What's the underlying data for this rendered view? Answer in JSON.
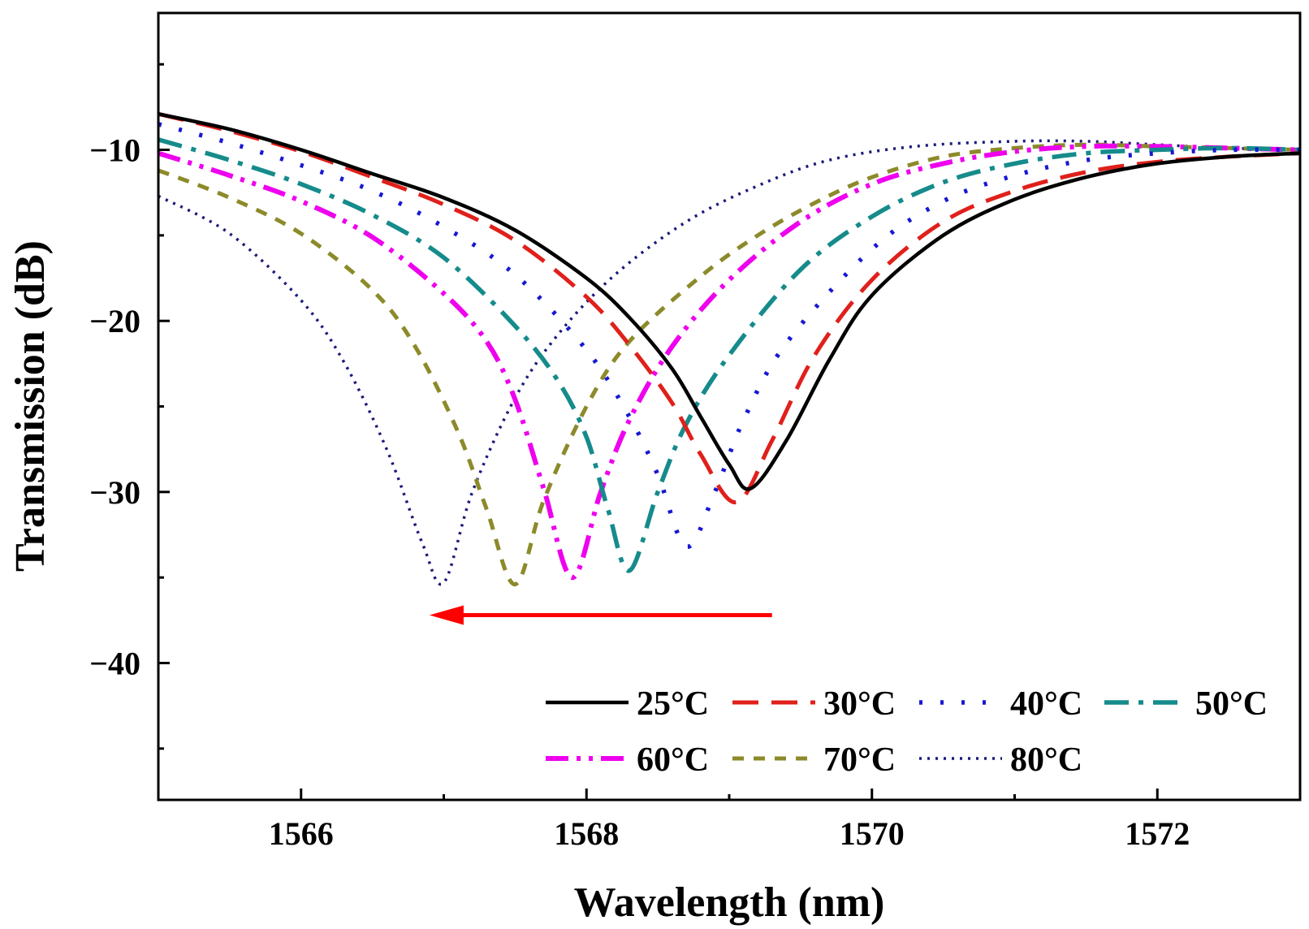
{
  "chart_data": {
    "type": "line",
    "title": "",
    "xlabel": "Wavelength (nm)",
    "ylabel": "Transmission (dB)",
    "xlim": [
      1565,
      1573
    ],
    "ylim": [
      -48,
      -2
    ],
    "xticks": [
      1566,
      1568,
      1570,
      1572
    ],
    "xtick_labels": [
      "1566",
      "1568",
      "1570",
      "1572"
    ],
    "yticks": [
      -10,
      -20,
      -30,
      -40
    ],
    "ytick_labels": [
      "−10",
      "−20",
      "−30",
      "−40"
    ],
    "grid": false,
    "legend_position": "bottom-right",
    "annotation": {
      "type": "arrow",
      "meaning": "resonance dip shifts to shorter wavelength with increasing temperature",
      "from": [
        1569.3,
        -37.2
      ],
      "to": [
        1566.9,
        -37.2
      ],
      "color": "#ff0000"
    },
    "series": [
      {
        "name": "25°C",
        "color": "#000000",
        "style": "solid",
        "x": [
          1565,
          1565.5,
          1566,
          1566.5,
          1567,
          1567.5,
          1568,
          1568.3,
          1568.6,
          1568.8,
          1569,
          1569.15,
          1569.4,
          1569.7,
          1570,
          1570.5,
          1571,
          1571.5,
          1572,
          1572.5,
          1573
        ],
        "y": [
          -7.9,
          -8.8,
          -10.0,
          -11.4,
          -12.8,
          -14.7,
          -17.5,
          -19.8,
          -22.8,
          -25.6,
          -28.4,
          -29.8,
          -27.0,
          -22.3,
          -18.5,
          -15.0,
          -12.9,
          -11.6,
          -10.8,
          -10.4,
          -10.2
        ]
      },
      {
        "name": "30°C",
        "color": "#e0201b",
        "style": "dashed",
        "x": [
          1565,
          1565.5,
          1566,
          1566.5,
          1567,
          1567.5,
          1568,
          1568.3,
          1568.6,
          1568.8,
          1569.05,
          1569.3,
          1569.6,
          1570,
          1570.5,
          1571,
          1571.5,
          1572,
          1572.5,
          1573
        ],
        "y": [
          -7.9,
          -8.9,
          -10.1,
          -11.6,
          -13.2,
          -15.3,
          -18.6,
          -21.4,
          -24.8,
          -27.8,
          -30.6,
          -27.0,
          -22.0,
          -17.6,
          -14.2,
          -12.4,
          -11.3,
          -10.7,
          -10.4,
          -10.2
        ]
      },
      {
        "name": "40°C",
        "color": "#1717d4",
        "style": "dotted",
        "x": [
          1565,
          1565.5,
          1566,
          1566.5,
          1567,
          1567.5,
          1568,
          1568.3,
          1568.5,
          1568.7,
          1568.9,
          1569.1,
          1569.4,
          1570,
          1570.5,
          1571,
          1571.5,
          1572,
          1572.5,
          1573
        ],
        "y": [
          -8.5,
          -9.6,
          -10.9,
          -12.4,
          -14.5,
          -17.3,
          -21.7,
          -25.6,
          -29.0,
          -33.2,
          -30.0,
          -25.8,
          -21.3,
          -15.8,
          -13.0,
          -11.5,
          -10.6,
          -10.2,
          -10.0,
          -10.0
        ]
      },
      {
        "name": "50°C",
        "color": "#168b8b",
        "style": "dashdot",
        "x": [
          1565,
          1565.5,
          1566,
          1566.5,
          1567,
          1567.5,
          1567.8,
          1568,
          1568.15,
          1568.3,
          1568.5,
          1568.7,
          1569,
          1569.5,
          1570,
          1570.5,
          1571,
          1571.5,
          1572,
          1572.5,
          1573
        ],
        "y": [
          -9.4,
          -10.6,
          -12.0,
          -13.8,
          -16.3,
          -20.3,
          -23.5,
          -26.8,
          -31.0,
          -34.6,
          -30.0,
          -26.0,
          -22.0,
          -17.0,
          -13.9,
          -11.9,
          -10.8,
          -10.2,
          -10.0,
          -9.9,
          -10.0
        ]
      },
      {
        "name": "60°C",
        "color": "#ee00ee",
        "style": "dashdotdot",
        "x": [
          1565,
          1565.5,
          1566,
          1566.5,
          1567,
          1567.3,
          1567.5,
          1567.7,
          1567.9,
          1568.1,
          1568.3,
          1568.6,
          1569,
          1569.5,
          1570,
          1570.5,
          1571,
          1571.5,
          1572,
          1572.5,
          1573
        ],
        "y": [
          -10.2,
          -11.5,
          -13.0,
          -15.1,
          -18.4,
          -21.2,
          -24.6,
          -29.8,
          -35.0,
          -30.0,
          -25.8,
          -21.5,
          -17.6,
          -14.2,
          -12.0,
          -10.8,
          -10.1,
          -9.8,
          -9.8,
          -9.9,
          -10.0
        ]
      },
      {
        "name": "70°C",
        "color": "#8c8a2a",
        "style": "shortdash",
        "x": [
          1565,
          1565.5,
          1566,
          1566.5,
          1566.8,
          1567.1,
          1567.3,
          1567.5,
          1567.7,
          1568,
          1568.3,
          1568.8,
          1569.2,
          1569.6,
          1570,
          1570.5,
          1571,
          1571.5,
          1572,
          1572.5,
          1573
        ],
        "y": [
          -11.2,
          -12.8,
          -14.9,
          -18.2,
          -21.5,
          -26.5,
          -31.0,
          -35.4,
          -30.5,
          -25.0,
          -21.2,
          -17.4,
          -15.0,
          -13.1,
          -11.6,
          -10.4,
          -9.9,
          -9.7,
          -9.8,
          -9.9,
          -10.0
        ]
      },
      {
        "name": "80°C",
        "color": "#1a1a7a",
        "style": "densedot",
        "x": [
          1565,
          1565.5,
          1566,
          1566.3,
          1566.6,
          1566.85,
          1567,
          1567.2,
          1567.5,
          1567.8,
          1568.2,
          1568.7,
          1569.2,
          1569.7,
          1570.3,
          1571,
          1571.5,
          1572,
          1572.5,
          1573
        ],
        "y": [
          -12.7,
          -14.9,
          -18.8,
          -22.4,
          -27.5,
          -33.0,
          -35.3,
          -30.0,
          -24.5,
          -20.8,
          -17.3,
          -14.2,
          -12.1,
          -10.6,
          -9.8,
          -9.5,
          -9.5,
          -9.7,
          -9.9,
          -10.0
        ]
      }
    ]
  }
}
